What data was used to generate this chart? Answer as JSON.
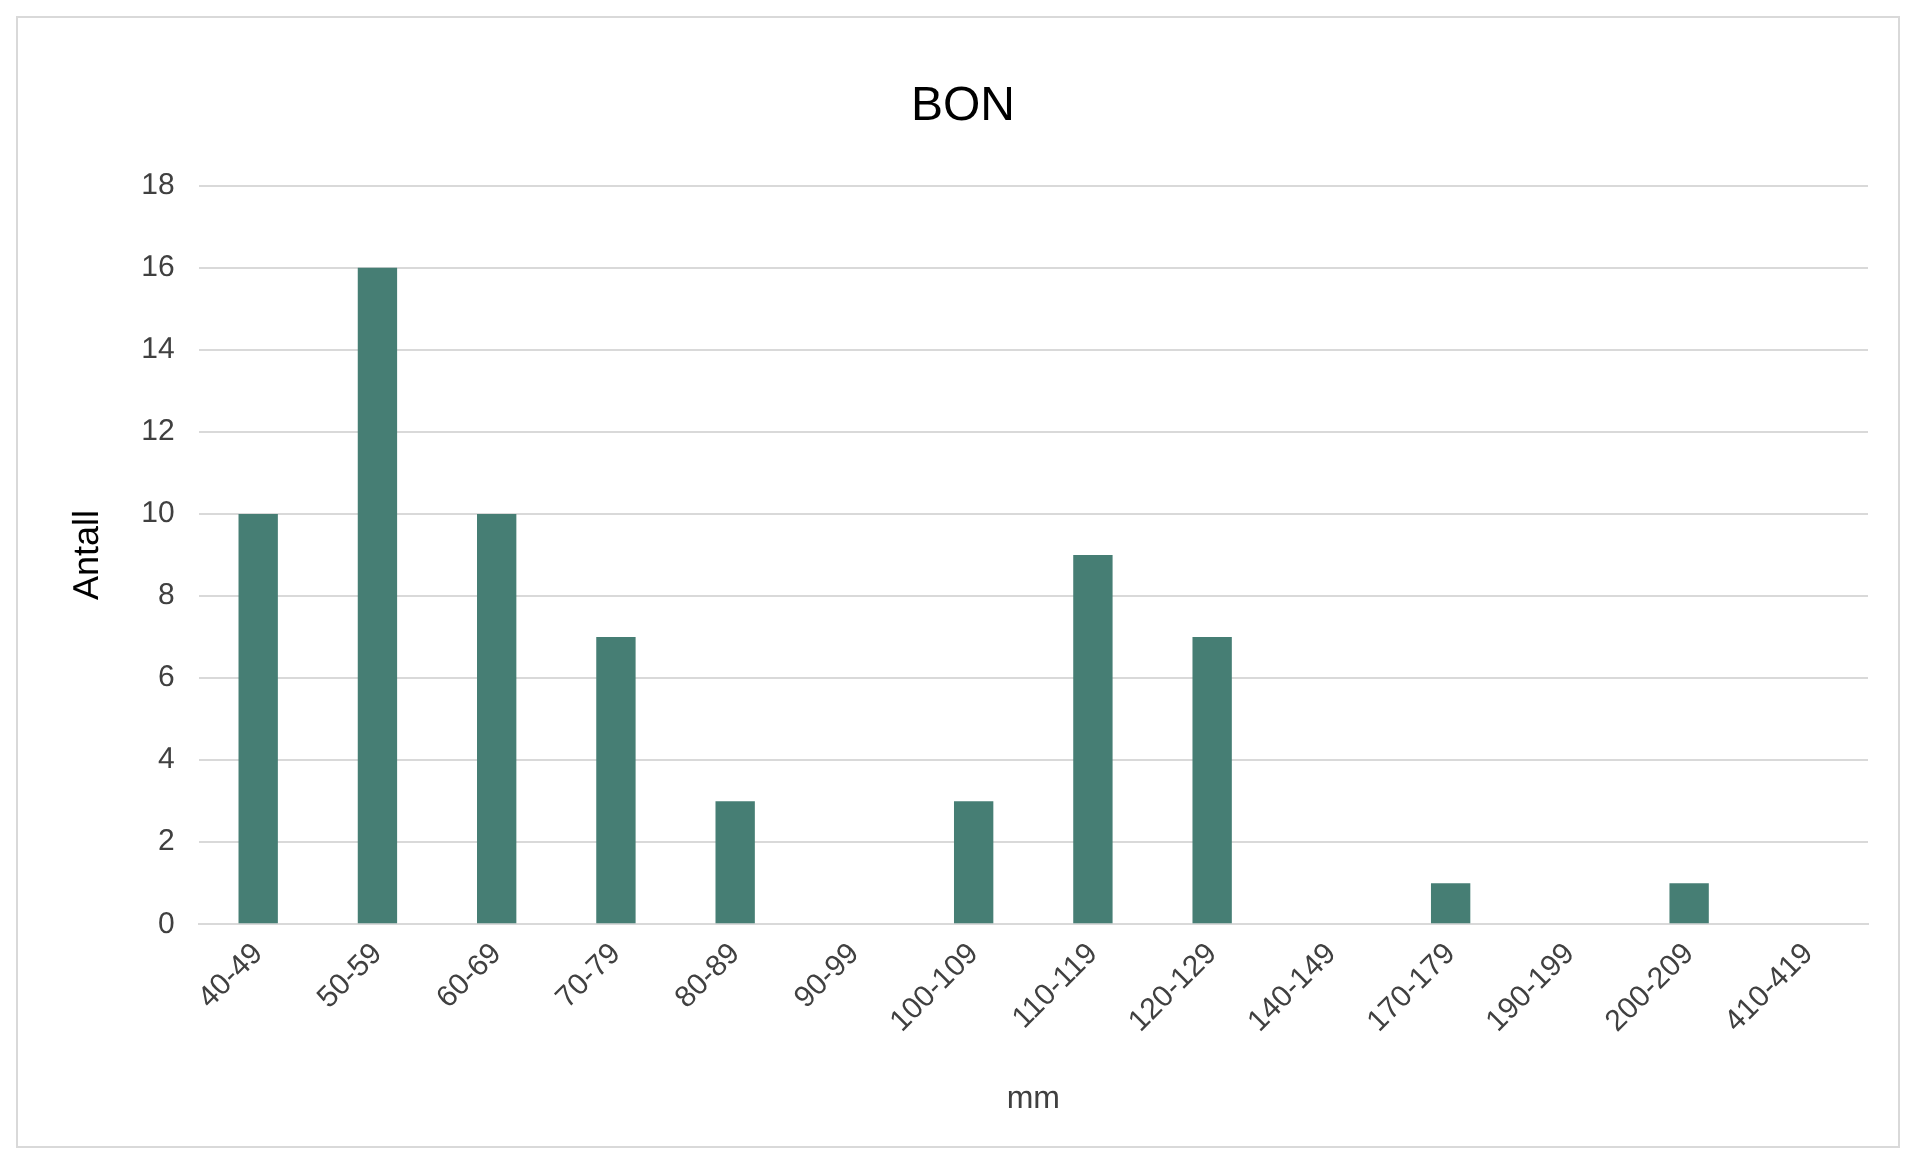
{
  "chart_data": {
    "type": "bar",
    "title": "BON",
    "xlabel": "mm",
    "ylabel": "Antall",
    "categories": [
      "40-49",
      "50-59",
      "60-69",
      "70-79",
      "80-89",
      "90-99",
      "100-109",
      "110-119",
      "120-129",
      "140-149",
      "170-179",
      "190-199",
      "200-209",
      "410-419"
    ],
    "values": [
      10,
      16,
      10,
      7,
      3,
      0,
      3,
      9,
      7,
      0,
      1,
      0,
      1,
      0
    ],
    "color": "#467e74",
    "ylim": [
      0,
      18
    ],
    "yticks": [
      0,
      2,
      4,
      6,
      8,
      10,
      12,
      14,
      16,
      18
    ],
    "grid": "y",
    "legend": false
  }
}
